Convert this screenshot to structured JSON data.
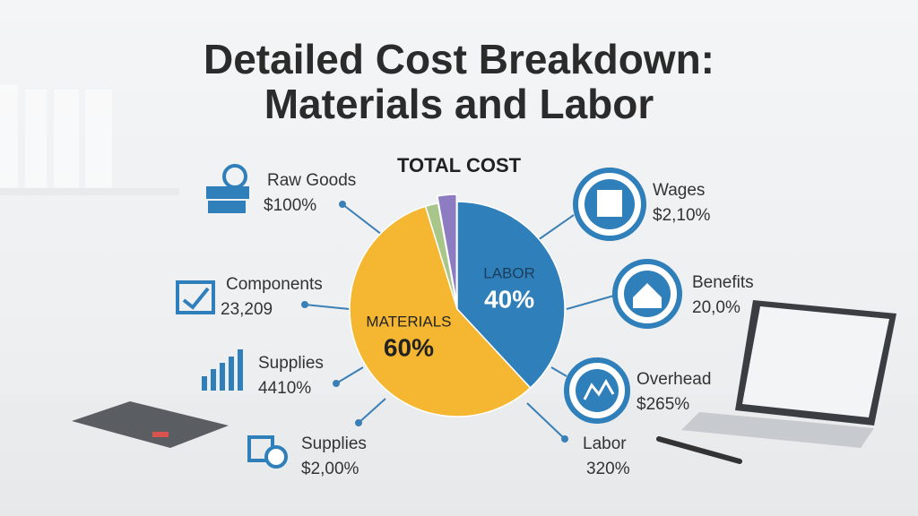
{
  "chart_data": {
    "type": "pie",
    "title": "Detailed Cost Breakdown:",
    "subtitle": "Materials and Labor",
    "center_title": "TOTAL COST",
    "categories": [
      "LABOR",
      "MATERIALS",
      null,
      null
    ],
    "values": [
      40,
      60,
      2,
      3
    ],
    "value_labels": [
      "40%",
      "60%",
      null,
      null
    ],
    "colors": [
      "#2f7fba",
      "#f5b731",
      "#a8c68a",
      "#8e7cc3"
    ],
    "callouts_left": [
      {
        "label": "Raw Goods",
        "value": "$100%"
      },
      {
        "label": "Components",
        "value": "23,209"
      },
      {
        "label": "Supplies",
        "value": "4410%"
      },
      {
        "label": "Supplies",
        "value": "$2,00%"
      }
    ],
    "callouts_right": [
      {
        "label": "Wages",
        "value": "$2,10%"
      },
      {
        "label": "Benefits",
        "value": "20,0%"
      },
      {
        "label": "Overhead",
        "value": "$265%"
      },
      {
        "label": "Labor",
        "value": "320%"
      }
    ]
  }
}
